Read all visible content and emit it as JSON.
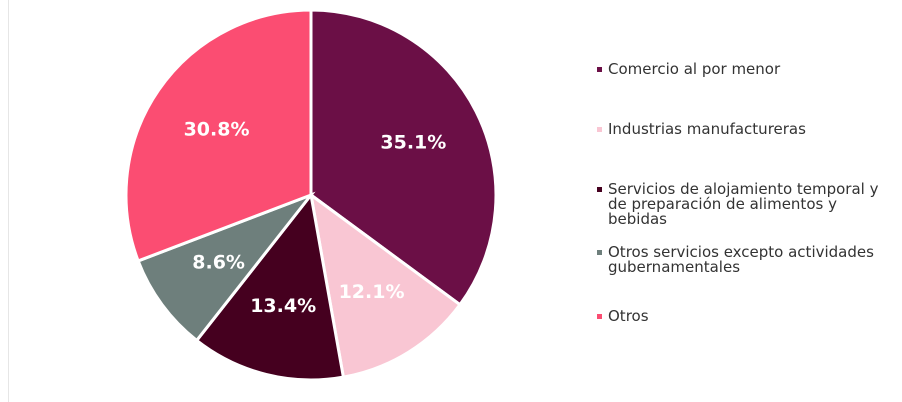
{
  "chart_data": {
    "type": "pie",
    "categories": [
      "Comercio al por menor",
      "Industrias manufactureras",
      "Servicios de alojamiento temporal y de preparación de alimentos y bebidas",
      "Otros servicios excepto actividades gubernamentales",
      "Otros"
    ],
    "values": [
      35.1,
      12.1,
      13.4,
      8.6,
      30.8
    ],
    "value_labels": [
      "35.1%",
      "12.1%",
      "13.4%",
      "8.6%",
      "30.8%"
    ],
    "colors": [
      "#6b0f46",
      "#f9c6d3",
      "#45001f",
      "#6e7f7c",
      "#fb4d72"
    ],
    "legend": "right"
  }
}
